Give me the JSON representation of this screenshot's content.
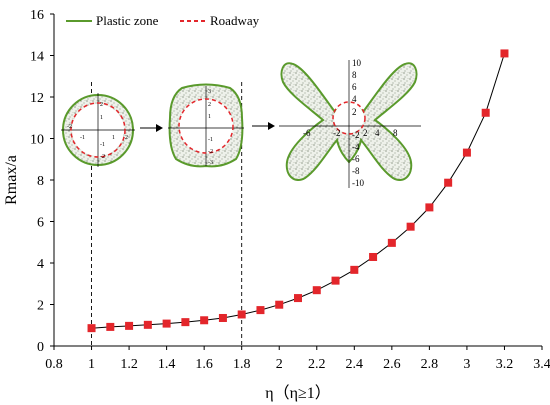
{
  "chart_data": {
    "type": "line",
    "title": "",
    "xlabel": "η（η≥1）",
    "ylabel": "Rmax/a",
    "xlim": [
      0.8,
      3.4
    ],
    "ylim": [
      0,
      16
    ],
    "x_ticks": [
      "0.8",
      "1",
      "1.2",
      "1.4",
      "1.6",
      "1.8",
      "2",
      "2.2",
      "2.4",
      "2.6",
      "2.8",
      "3",
      "3.2",
      "3.4"
    ],
    "y_ticks": [
      "0",
      "2",
      "4",
      "6",
      "8",
      "10",
      "12",
      "14",
      "16"
    ],
    "grid": false,
    "legend_position": "top-left",
    "legend": [
      {
        "label": "Plastic zone",
        "style": "solid",
        "color": "#5a9a2c"
      },
      {
        "label": "Roadway",
        "style": "dashed",
        "color": "#e3262b"
      }
    ],
    "series": [
      {
        "marker": "square",
        "color": "#e3262b",
        "line_color": "#000000",
        "x": [
          1.0,
          1.1,
          1.2,
          1.3,
          1.4,
          1.5,
          1.6,
          1.7,
          1.8,
          1.9,
          2.0,
          2.1,
          2.2,
          2.3,
          2.4,
          2.5,
          2.6,
          2.7,
          2.8,
          2.9,
          3.0,
          3.1,
          3.2
        ],
        "y": [
          0.86,
          0.92,
          0.97,
          1.02,
          1.08,
          1.15,
          1.24,
          1.35,
          1.52,
          1.73,
          1.99,
          2.31,
          2.69,
          3.15,
          3.67,
          4.29,
          4.97,
          5.75,
          6.68,
          7.87,
          9.32,
          11.24,
          14.1
        ]
      }
    ],
    "guide_lines_at_x": [
      1.0,
      1.8
    ],
    "insets": [
      {
        "name": "circle",
        "tick_labels": [
          "1",
          "2",
          "-1",
          "-2",
          "2",
          "1",
          "-1",
          "-2"
        ]
      },
      {
        "name": "rounded-square",
        "tick_labels": [
          "3",
          "2",
          "1",
          "-1",
          "-2",
          "-3"
        ]
      },
      {
        "name": "butterfly",
        "tick_labels": [
          "10",
          "8",
          "6",
          "4",
          "2",
          "-2",
          "-4",
          "-6",
          "-8",
          "-10",
          "-6",
          "-2",
          "2",
          "4",
          "8"
        ]
      }
    ]
  },
  "colors": {
    "plastic_zone": "#5a9a2c",
    "plastic_fill": "#eef1ea",
    "roadway": "#e3262b",
    "marker": "#e3262b"
  }
}
